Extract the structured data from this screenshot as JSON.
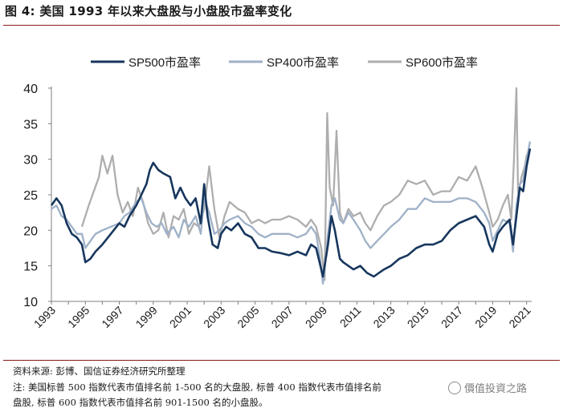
{
  "figure": {
    "title": "图 4:  美国 1993 年以来大盘股与小盘股市盈率变化",
    "source": "资料来源: 彭博、国信证券经济研究所整理",
    "note_line1": "注: 美国标普 500 指数代表市值排名前 1-500 名的大盘股, 标普 400 指数代表市值排名前",
    "note_line2": "盘股, 标普 600 指数代表市值排名前 901-1500 名的小盘股。",
    "watermark": "價值投資之路"
  },
  "chart_data": {
    "type": "line",
    "title": "",
    "xlabel": "",
    "ylabel": "",
    "xlim": [
      1993,
      2021.3
    ],
    "ylim": [
      10,
      40
    ],
    "yticks": [
      10,
      15,
      20,
      25,
      30,
      35,
      40
    ],
    "xtick_labels": [
      "1993",
      "1995",
      "1997",
      "1999",
      "2001",
      "2003",
      "2005",
      "2007",
      "2009",
      "2011",
      "2013",
      "2015",
      "2017",
      "2019",
      "2021"
    ],
    "legend_position": "top",
    "grid": false,
    "series": [
      {
        "name": "SP500市盈率",
        "color": "#17365d",
        "x": [
          1993.0,
          1993.3,
          1993.6,
          1993.9,
          1994.2,
          1994.5,
          1994.8,
          1995.0,
          1995.3,
          1995.6,
          1996.0,
          1996.5,
          1997.0,
          1997.3,
          1997.6,
          1998.0,
          1998.3,
          1998.6,
          1998.8,
          1999.0,
          1999.3,
          1999.6,
          2000.0,
          2000.3,
          2000.6,
          2000.9,
          2001.2,
          2001.5,
          2001.8,
          2002.0,
          2002.2,
          2002.5,
          2002.8,
          2003.0,
          2003.3,
          2003.6,
          2004.0,
          2004.4,
          2004.8,
          2005.2,
          2005.6,
          2006.0,
          2006.5,
          2007.0,
          2007.5,
          2008.0,
          2008.3,
          2008.6,
          2008.8,
          2009.0,
          2009.1,
          2009.3,
          2009.5,
          2009.7,
          2010.0,
          2010.2,
          2010.5,
          2010.8,
          2011.2,
          2011.6,
          2012.0,
          2012.3,
          2012.6,
          2013.0,
          2013.5,
          2014.0,
          2014.5,
          2015.0,
          2015.5,
          2016.0,
          2016.5,
          2017.0,
          2017.5,
          2018.0,
          2018.5,
          2018.8,
          2019.0,
          2019.3,
          2019.6,
          2020.0,
          2020.2,
          2020.4,
          2020.6,
          2020.8,
          2021.0,
          2021.2
        ],
        "values": [
          23.5,
          24.5,
          23.5,
          21.0,
          19.5,
          19.0,
          18.0,
          15.5,
          16.0,
          17.0,
          18.0,
          19.5,
          21.0,
          20.5,
          22.0,
          23.5,
          25.0,
          26.5,
          28.5,
          29.5,
          28.5,
          28.0,
          27.5,
          24.5,
          26.0,
          24.5,
          23.5,
          24.5,
          21.0,
          26.5,
          22.0,
          18.0,
          17.5,
          19.5,
          20.5,
          20.0,
          21.0,
          19.5,
          19.0,
          17.5,
          17.5,
          17.0,
          16.8,
          16.5,
          17.0,
          16.5,
          18.0,
          17.5,
          15.5,
          13.5,
          15.0,
          18.0,
          22.0,
          20.0,
          16.0,
          15.5,
          15.0,
          14.5,
          15.0,
          14.0,
          13.5,
          14.0,
          14.5,
          15.0,
          16.0,
          16.5,
          17.5,
          18.0,
          18.0,
          18.5,
          20.0,
          21.0,
          21.5,
          22.0,
          20.5,
          18.0,
          17.0,
          19.5,
          20.5,
          21.5,
          18.0,
          22.0,
          26.0,
          25.5,
          29.0,
          31.5
        ]
      },
      {
        "name": "SP400市盈率",
        "color": "#9fb1c8",
        "x": [
          1993.0,
          1993.3,
          1993.6,
          1993.9,
          1994.2,
          1994.5,
          1994.8,
          1995.0,
          1995.3,
          1995.6,
          1996.0,
          1996.5,
          1997.0,
          1997.3,
          1997.6,
          1998.0,
          1998.3,
          1998.6,
          1998.9,
          1999.2,
          1999.5,
          1999.8,
          2000.2,
          2000.5,
          2000.8,
          2001.1,
          2001.5,
          2001.8,
          2002.0,
          2002.3,
          2002.6,
          2002.9,
          2003.2,
          2003.5,
          2004.0,
          2004.4,
          2004.8,
          2005.2,
          2005.6,
          2006.0,
          2006.5,
          2007.0,
          2007.5,
          2008.0,
          2008.3,
          2008.6,
          2008.8,
          2009.0,
          2009.1,
          2009.3,
          2009.5,
          2009.7,
          2010.0,
          2010.2,
          2010.5,
          2010.8,
          2011.2,
          2011.5,
          2011.8,
          2012.2,
          2012.6,
          2013.0,
          2013.5,
          2014.0,
          2014.5,
          2015.0,
          2015.5,
          2016.0,
          2016.5,
          2017.0,
          2017.5,
          2018.0,
          2018.5,
          2018.8,
          2019.0,
          2019.3,
          2019.6,
          2020.0,
          2020.2,
          2020.4,
          2020.6,
          2020.8,
          2021.0,
          2021.2
        ],
        "values": [
          23.0,
          23.5,
          22.0,
          21.5,
          20.5,
          19.5,
          19.5,
          17.5,
          18.5,
          19.5,
          20.0,
          20.5,
          21.0,
          22.0,
          22.5,
          24.0,
          24.5,
          22.5,
          21.0,
          20.5,
          21.0,
          19.5,
          20.5,
          19.0,
          21.5,
          20.5,
          22.0,
          19.5,
          24.5,
          22.5,
          19.5,
          20.0,
          21.0,
          21.5,
          22.0,
          21.0,
          20.5,
          19.5,
          19.0,
          19.5,
          19.5,
          19.5,
          19.0,
          19.5,
          20.5,
          19.5,
          16.5,
          12.5,
          14.5,
          19.5,
          23.5,
          24.5,
          21.5,
          21.0,
          22.5,
          21.5,
          20.0,
          18.5,
          17.5,
          18.5,
          19.5,
          20.5,
          21.5,
          23.0,
          23.0,
          24.5,
          24.0,
          24.0,
          24.0,
          24.5,
          24.5,
          24.0,
          22.5,
          21.0,
          18.5,
          20.0,
          21.5,
          21.0,
          17.0,
          23.5,
          26.5,
          27.0,
          30.0,
          32.5
        ]
      },
      {
        "name": "SP600市盈率",
        "color": "#aeaeae",
        "x": [
          1994.8,
          1995.2,
          1995.5,
          1995.8,
          1996.0,
          1996.3,
          1996.6,
          1996.9,
          1997.2,
          1997.5,
          1997.8,
          1998.1,
          1998.4,
          1998.7,
          1999.0,
          1999.3,
          1999.6,
          1999.9,
          2000.2,
          2000.5,
          2000.8,
          2001.1,
          2001.4,
          2001.7,
          2002.0,
          2002.3,
          2002.6,
          2002.9,
          2003.2,
          2003.5,
          2004.0,
          2004.4,
          2004.8,
          2005.2,
          2005.6,
          2006.0,
          2006.5,
          2007.0,
          2007.5,
          2008.0,
          2008.3,
          2008.6,
          2008.9,
          2009.1,
          2009.25,
          2009.4,
          2009.6,
          2009.8,
          2010.0,
          2010.2,
          2010.5,
          2010.8,
          2011.2,
          2011.5,
          2011.8,
          2012.2,
          2012.6,
          2013.0,
          2013.5,
          2014.0,
          2014.5,
          2015.0,
          2015.5,
          2016.0,
          2016.5,
          2017.0,
          2017.5,
          2018.0,
          2018.4,
          2018.8,
          2019.0,
          2019.3,
          2019.6,
          2019.9,
          2020.1,
          2020.25,
          2020.4,
          2020.5,
          2020.7,
          2020.9,
          2021.0,
          2021.2
        ],
        "values": [
          20.5,
          23.5,
          25.5,
          27.5,
          30.5,
          28.0,
          30.5,
          25.0,
          22.5,
          24.0,
          22.0,
          26.0,
          24.0,
          21.0,
          19.5,
          20.0,
          22.5,
          19.0,
          22.0,
          21.5,
          23.0,
          19.5,
          21.0,
          20.5,
          23.0,
          29.0,
          23.0,
          19.0,
          22.0,
          24.0,
          23.0,
          22.5,
          21.0,
          21.5,
          21.0,
          21.5,
          21.5,
          22.0,
          21.5,
          20.5,
          21.5,
          20.5,
          17.5,
          13.0,
          36.5,
          26.0,
          23.5,
          34.0,
          22.5,
          21.0,
          23.0,
          22.0,
          22.5,
          21.0,
          20.0,
          22.0,
          23.5,
          24.0,
          25.0,
          27.0,
          26.5,
          27.0,
          25.0,
          25.5,
          25.5,
          27.5,
          27.0,
          29.0,
          26.0,
          22.5,
          20.5,
          21.5,
          23.5,
          25.0,
          21.5,
          29.5,
          40.0,
          25.0,
          27.5,
          29.0,
          30.5,
          31.5
        ]
      }
    ]
  }
}
